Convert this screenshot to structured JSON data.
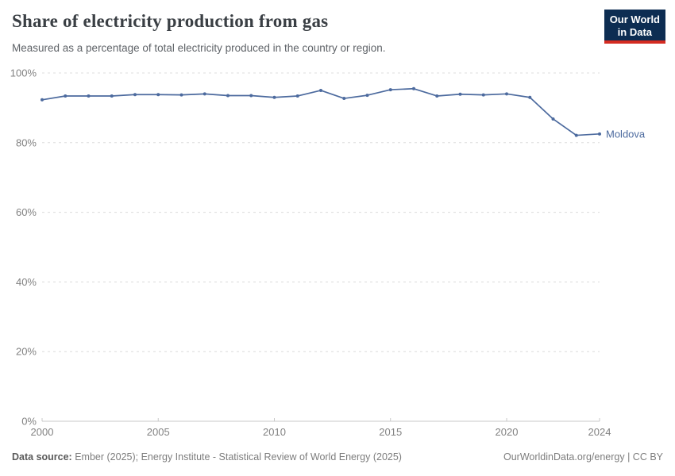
{
  "header": {
    "title": "Share of electricity production from gas",
    "subtitle": "Measured as a percentage of total electricity produced in the country or region.",
    "logo": {
      "line1": "Our World",
      "line2": "in Data"
    }
  },
  "chart_data": {
    "type": "line",
    "title": "Share of electricity production from gas",
    "subtitle": "Measured as a percentage of total electricity produced in the country or region.",
    "x": [
      2000,
      2001,
      2002,
      2003,
      2004,
      2005,
      2006,
      2007,
      2008,
      2009,
      2010,
      2011,
      2012,
      2013,
      2014,
      2015,
      2016,
      2017,
      2018,
      2019,
      2020,
      2021,
      2022,
      2023,
      2024
    ],
    "series": [
      {
        "name": "Moldova",
        "values": [
          92.3,
          93.4,
          93.4,
          93.4,
          93.8,
          93.8,
          93.7,
          94.0,
          93.5,
          93.5,
          93.0,
          93.4,
          95.0,
          92.7,
          93.6,
          95.2,
          95.5,
          93.4,
          93.9,
          93.7,
          94.0,
          93.0,
          86.8,
          82.1,
          82.5
        ]
      }
    ],
    "x_ticks": [
      2000,
      2005,
      2010,
      2015,
      2020,
      2024
    ],
    "y_ticks": [
      0,
      20,
      40,
      60,
      80,
      100
    ],
    "y_tick_suffix": "%",
    "xlim": [
      2000,
      2024
    ],
    "ylim": [
      0,
      100
    ],
    "grid": true,
    "legend_position": "line-end-label",
    "line_color": "#4c6a9e"
  },
  "footer": {
    "source_label": "Data source:",
    "source_text": "Ember (2025); Energy Institute - Statistical Review of World Energy (2025)",
    "credit": "OurWorldinData.org/energy | CC BY"
  },
  "colors": {
    "line": "#4c6a9e",
    "logo_bg": "#0d2d52",
    "logo_accent": "#d42b21",
    "grid": "#dcdcdc",
    "axis": "#c8c8c8",
    "tick_text": "#828282"
  }
}
